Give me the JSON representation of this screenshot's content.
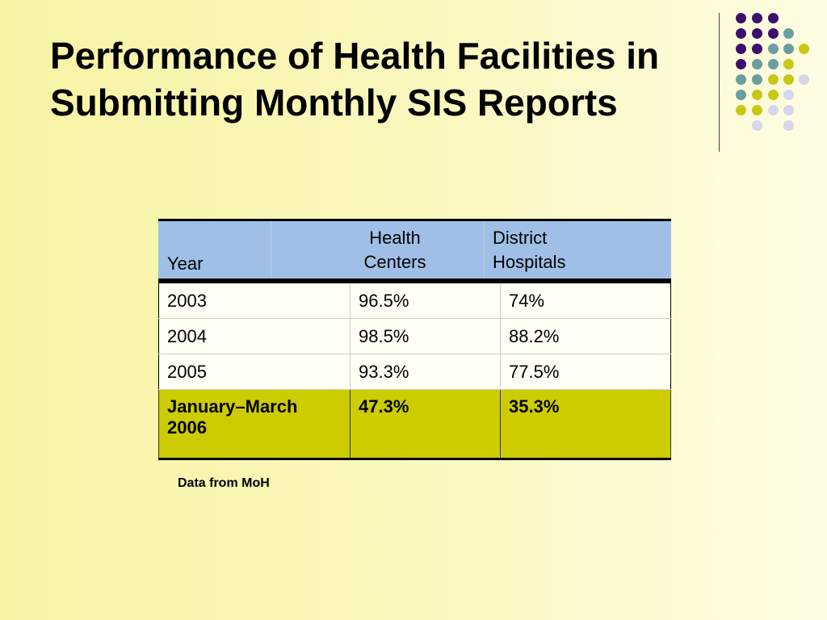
{
  "slide": {
    "title": "Performance of Health Facilities in Submitting Monthly SIS Reports",
    "footnote": "Data from MoH"
  },
  "table": {
    "headers": {
      "year": "Year",
      "health_centers_line1": "Health",
      "health_centers_line2": "Centers",
      "district_hospitals_line1": "District",
      "district_hospitals_line2": "Hospitals"
    },
    "rows": [
      {
        "year": "2003",
        "health_centers": "96.5%",
        "district_hospitals": "74%"
      },
      {
        "year": "2004",
        "health_centers": "98.5%",
        "district_hospitals": "88.2%"
      },
      {
        "year": "2005",
        "health_centers": "93.3%",
        "district_hospitals": "77.5%"
      },
      {
        "year": "January–March 2006",
        "health_centers": "47.3%",
        "district_hospitals": "35.3%"
      }
    ]
  },
  "colors": {
    "header_fill": "#9fbfe6",
    "highlight_fill": "#cccc00",
    "dot_purple": "#3d0f6b",
    "dot_teal": "#6a9ea0",
    "dot_yellow": "#c8c814",
    "dot_lavender": "#d6d6ec"
  }
}
